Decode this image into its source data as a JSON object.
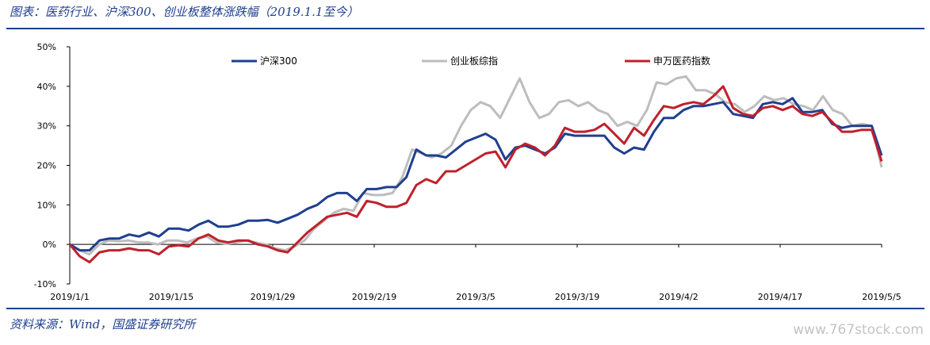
{
  "header": {
    "title": "图表：医药行业、沪深300、创业板整体涨跌幅（2019.1.1至今）"
  },
  "footer": {
    "source": "资料来源：Wind，国盛证券研究所",
    "watermark": "www.767stock.com"
  },
  "chart_data": {
    "type": "line",
    "ylim": [
      -10,
      50
    ],
    "yticks": [
      "50%",
      "40%",
      "30%",
      "20%",
      "10%",
      "0%",
      "-10%"
    ],
    "xticks": [
      "2019/1/1",
      "2019/1/15",
      "2019/1/29",
      "2019/2/19",
      "2019/3/5",
      "2019/3/19",
      "2019/4/2",
      "2019/4/17",
      "2019/5/5"
    ],
    "legend_position": "top",
    "series": [
      {
        "name": "沪深300",
        "color": "#1f3f8f",
        "values": [
          0,
          -1.5,
          -1.5,
          1,
          1.5,
          1.5,
          2.5,
          2,
          3,
          2,
          4,
          4,
          3.5,
          5,
          6,
          4.5,
          4.5,
          5,
          6,
          6,
          6.2,
          5.5,
          6.5,
          7.5,
          9,
          10,
          12,
          13,
          13,
          11,
          14,
          14,
          14.5,
          14.5,
          17,
          24,
          22.5,
          22.5,
          22,
          24,
          26,
          27,
          28,
          26.5,
          21.5,
          24.5,
          25,
          24,
          23,
          24.5,
          28,
          27.5,
          27.5,
          27.5,
          27.5,
          24.5,
          23,
          24.5,
          24,
          28.5,
          32,
          32,
          34,
          35,
          35,
          35.5,
          36,
          33,
          32.5,
          32,
          35.5,
          36,
          35.5,
          37,
          33.5,
          33.5,
          34,
          30.5,
          29.5,
          30,
          30,
          30,
          22.5
        ]
      },
      {
        "name": "创业板综指",
        "color": "#bdbdbd",
        "values": [
          0,
          -1.5,
          -2.5,
          0,
          1,
          0.8,
          1,
          0.5,
          0.5,
          0,
          1,
          1,
          0.5,
          1.5,
          2,
          0.5,
          0.2,
          0.5,
          1,
          0.5,
          0,
          -1,
          -1.5,
          -0.5,
          1,
          4,
          6,
          8,
          9,
          8.5,
          13,
          12.5,
          12.5,
          13,
          17,
          24,
          23,
          22,
          23,
          25,
          30,
          34,
          36,
          35,
          32,
          37,
          42,
          36,
          32,
          33,
          36,
          36.5,
          35,
          36,
          34,
          33,
          30,
          31,
          30,
          34,
          41,
          40.5,
          42,
          42.5,
          39,
          39,
          38,
          36,
          35.5,
          33.5,
          35,
          37.5,
          36.5,
          37,
          35.5,
          35,
          34,
          37.5,
          34,
          33,
          30,
          30.5,
          30,
          19.5
        ]
      },
      {
        "name": "申万医药指数",
        "color": "#c0202c",
        "values": [
          0,
          -3,
          -4.5,
          -2,
          -1.5,
          -1.5,
          -1,
          -1.5,
          -1.5,
          -2.5,
          -0.5,
          -0.2,
          -0.5,
          1.5,
          2.5,
          1,
          0.5,
          1,
          1,
          0,
          -0.5,
          -1.5,
          -2,
          0.5,
          3,
          5,
          7,
          7.5,
          8,
          7,
          11,
          10.5,
          9.5,
          9.5,
          10.5,
          15,
          16.5,
          15.5,
          18.5,
          18.5,
          20,
          21.5,
          23,
          23.5,
          19.5,
          24,
          25.5,
          24.5,
          22.5,
          25,
          29.5,
          28.5,
          28.5,
          29,
          30.5,
          28,
          25.5,
          29.5,
          27.5,
          31.5,
          35,
          34.5,
          35.5,
          36,
          35.5,
          37.5,
          40,
          34.5,
          33,
          32.5,
          34.5,
          35,
          34,
          35,
          33,
          32.5,
          33.5,
          31,
          28.5,
          28.5,
          29,
          29,
          21
        ]
      }
    ]
  }
}
